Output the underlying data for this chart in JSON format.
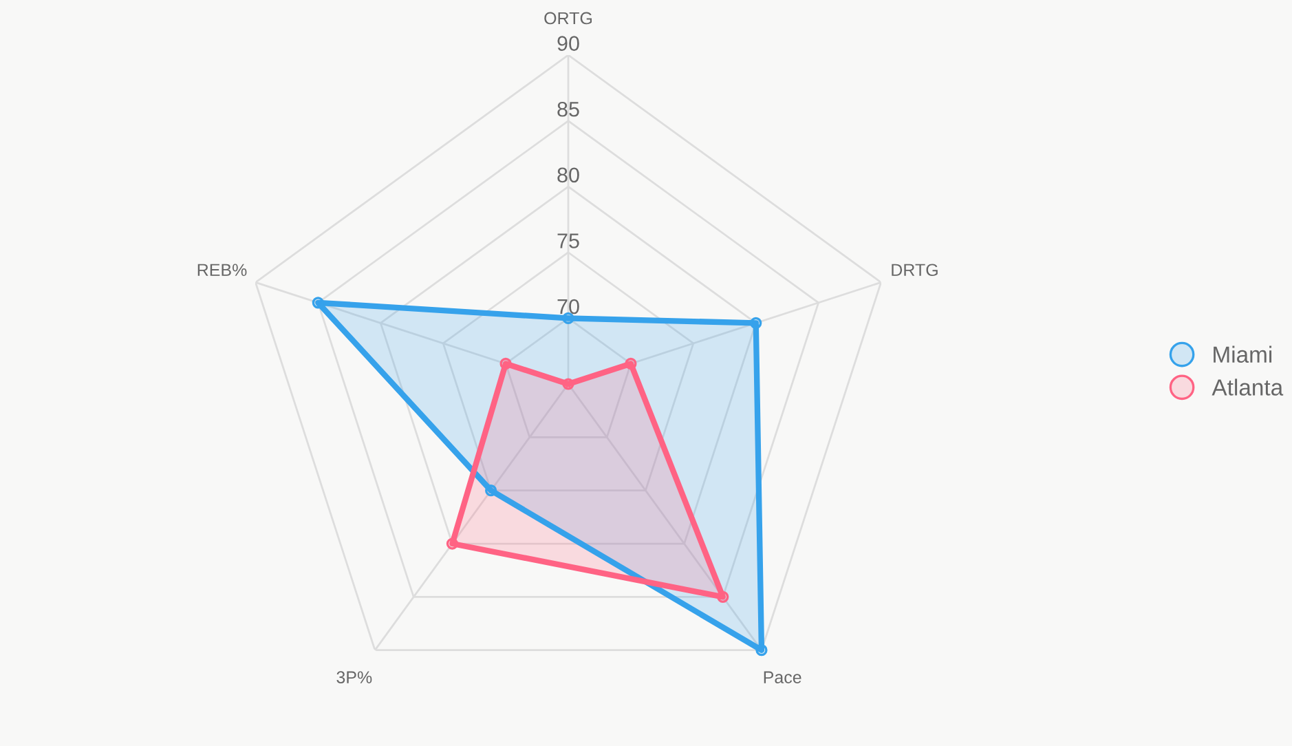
{
  "chart_data": {
    "type": "radar",
    "categories": [
      "ORTG",
      "DRTG",
      "Pace",
      "3P%",
      "REB%"
    ],
    "series": [
      {
        "name": "Miami",
        "color": "#36a2eb",
        "values": [
          70,
          80,
          90,
          75,
          85
        ]
      },
      {
        "name": "Atlanta",
        "color": "#ff6384",
        "values": [
          65,
          70,
          85,
          80,
          70
        ]
      }
    ],
    "ylim": [
      65,
      90
    ],
    "yticks": [
      70,
      75,
      80,
      85,
      90
    ],
    "grid": true,
    "legend": "right",
    "marker": "circle"
  }
}
